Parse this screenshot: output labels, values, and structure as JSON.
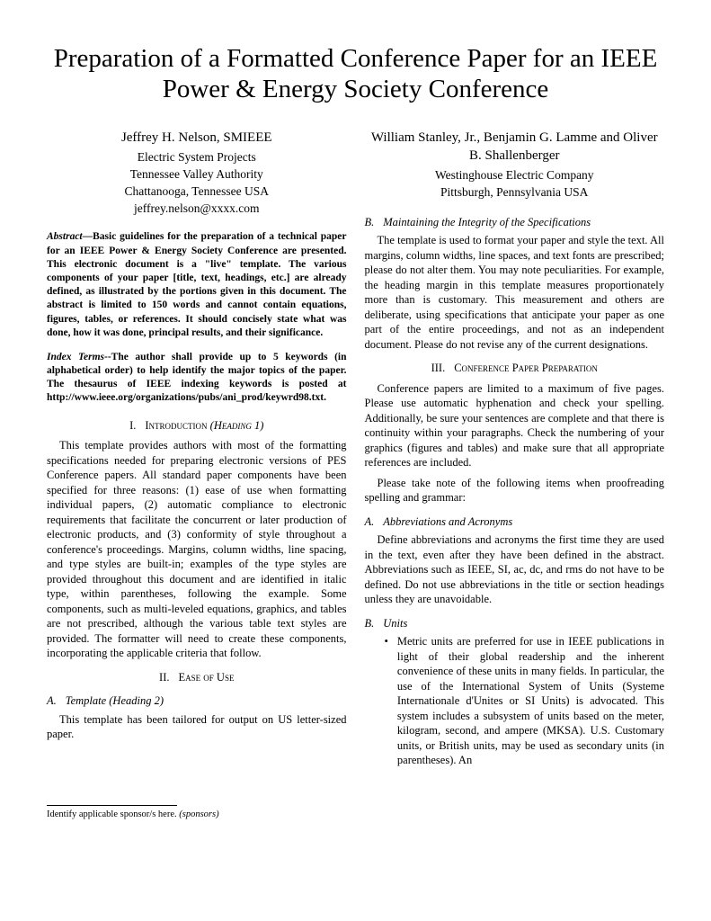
{
  "title": "Preparation of a Formatted Conference Paper for an IEEE Power & Energy Society Conference",
  "authors": {
    "left": {
      "name": "Jeffrey H. Nelson, SMIEEE",
      "lines": [
        "Electric System Projects",
        "Tennessee Valley Authority",
        "Chattanooga, Tennessee USA",
        "jeffrey.nelson@xxxx.com"
      ]
    },
    "right": {
      "name": "William Stanley, Jr., Benjamin G. Lamme and Oliver B. Shallenberger",
      "lines": [
        "Westinghouse Electric Company",
        "Pittsburgh, Pennsylvania USA"
      ]
    }
  },
  "abstract": {
    "label": "Abstract",
    "text": "—Basic guidelines for the preparation of a technical paper for an IEEE Power & Energy Society Conference are presented. This electronic document is a \"live\" template. The various components of your paper [title, text, headings, etc.] are already defined, as illustrated by the portions given in this document. The abstract is limited to 150 words and cannot contain equations, figures, tables, or references. It should concisely state what was done, how it was done, principal results, and their significance."
  },
  "index_terms": {
    "label": "Index Terms",
    "text": "--The author shall provide up to 5 keywords (in alphabetical order) to help identify the major topics of the paper. The thesaurus of IEEE indexing keywords is posted at http://www.ieee.org/organizations/pubs/ani_prod/keywrd98.txt."
  },
  "sec1": {
    "num": "I.",
    "title_first": "I",
    "title_tail": "ntroduction",
    "paren": " (Heading 1)",
    "p1": "This template provides authors with most of the formatting specifications needed for preparing electronic versions of PES Conference papers. All standard paper components have been specified for three reasons: (1) ease of use when formatting individual papers, (2) automatic compliance to electronic requirements that facilitate the concurrent or later production of electronic products, and (3) conformity of style throughout a conference's proceedings. Margins, column widths, line spacing, and type styles are built-in; examples of the type styles are provided throughout this document and are identified in italic type, within parentheses, following the example. Some components, such as multi-leveled equations, graphics, and tables are not prescribed, although the various table text styles are provided. The formatter will need to create these components, incorporating the applicable criteria that follow."
  },
  "sec2": {
    "num": "II.",
    "title_first": "E",
    "title_tail": "ase of ",
    "title_first2": "U",
    "title_tail2": "se",
    "subA": {
      "lbl": "A.",
      "title": "Template (Heading 2)",
      "p": "This template has been tailored for output on US letter-sized paper."
    },
    "subB": {
      "lbl": "B.",
      "title": "Maintaining the Integrity of the Specifications",
      "p": "The template is used to format your paper and style the text. All margins, column widths, line spaces, and text fonts are prescribed; please do not alter them. You may note peculiarities. For example, the heading margin in this template measures proportionately more than is customary. This measurement and others are deliberate, using specifications that anticipate your paper as one part of the entire proceedings, and not as an independent document. Please do not revise any of the current designations."
    }
  },
  "sec3": {
    "num": "III.",
    "title_first": "C",
    "title_tail": "onference ",
    "title_first2": "P",
    "title_tail2": "aper ",
    "title_first3": "P",
    "title_tail3": "reparation",
    "p1": "Conference papers are limited to a maximum of five pages. Please use automatic hyphenation and check your spelling. Additionally, be sure your sentences are complete and that there is continuity within your paragraphs. Check the numbering of your graphics (figures and tables) and make sure that all appropriate references are included.",
    "p2": "Please take note of the following items when proofreading spelling and grammar:",
    "subA": {
      "lbl": "A.",
      "title": "Abbreviations and Acronyms",
      "p": "Define abbreviations and acronyms the first time they are used in the text, even after they have been defined in the abstract. Abbreviations such as IEEE, SI, ac, dc, and rms do not have to be defined. Do not use abbreviations in the title or section headings unless they are unavoidable."
    },
    "subB": {
      "lbl": "B.",
      "title": "Units",
      "bullet": "Metric units are preferred for use in IEEE publications in light of their global readership and the inherent convenience of these units in many fields. In particular, the use of the International System of Units (Systeme Internationale d'Unites or SI Units) is advocated. This system includes a subsystem of units based on the meter, kilogram, second, and ampere (MKSA). U.S. Customary units, or British units, may be used as secondary units (in parentheses). An"
    }
  },
  "footnote": {
    "text": "Identify applicable sponsor/s here. ",
    "src": "(sponsors)"
  }
}
